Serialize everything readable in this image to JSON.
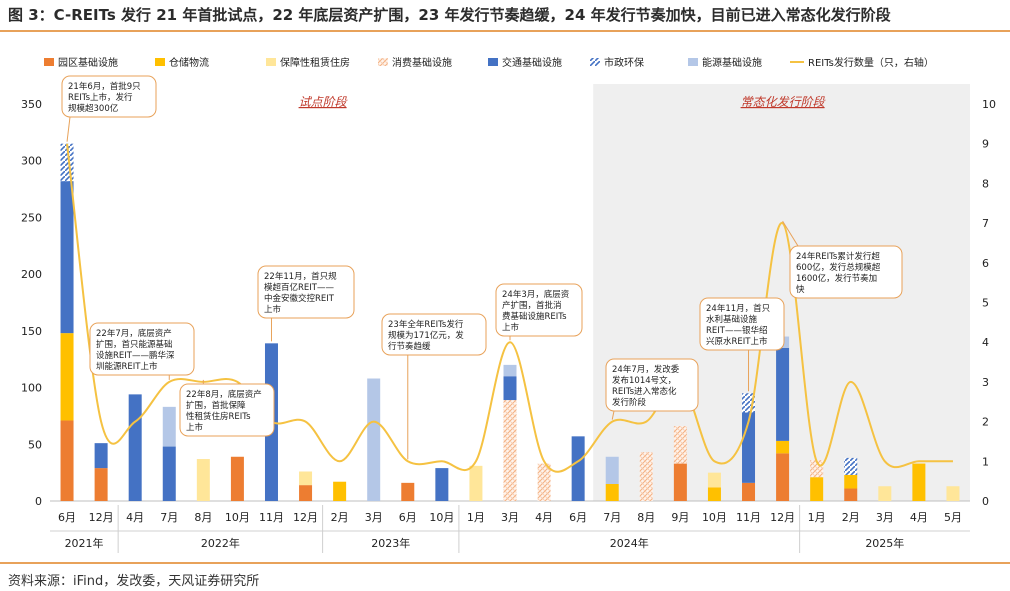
{
  "title": "图 3：C-REITs 发行 21 年首批试点，22 年底层资产扩围，23 年发行节奏趋缓，24 年发行节奏加快，目前已进入常态化发行阶段",
  "source": "资料来源：iFind，发改委，天风证券研究所",
  "chart_data": {
    "type": "bar",
    "stacked": true,
    "categories": [
      "6月",
      "12月",
      "4月",
      "7月",
      "8月",
      "10月",
      "11月",
      "12月",
      "2月",
      "3月",
      "6月",
      "10月",
      "1月",
      "3月",
      "4月",
      "6月",
      "7月",
      "8月",
      "9月",
      "10月",
      "11月",
      "12月",
      "1月",
      "2月",
      "3月",
      "4月",
      "5月"
    ],
    "years": [
      {
        "label": "2021年",
        "start": 0,
        "end": 1
      },
      {
        "label": "2022年",
        "start": 2,
        "end": 7
      },
      {
        "label": "2023年",
        "start": 8,
        "end": 11
      },
      {
        "label": "2024年",
        "start": 12,
        "end": 21
      },
      {
        "label": "2025年",
        "start": 22,
        "end": 26
      }
    ],
    "y_left": {
      "min": 0,
      "max": 350,
      "step": 50,
      "ticks": [
        "0",
        "50",
        "100",
        "150",
        "200",
        "250",
        "300",
        "350"
      ]
    },
    "y_right": {
      "min": 0,
      "max": 10,
      "step": 1,
      "ticks": [
        "0",
        "1",
        "2",
        "3",
        "4",
        "5",
        "6",
        "7",
        "8",
        "9",
        "10"
      ]
    },
    "series": [
      {
        "name": "园区基础设施",
        "color": "#ed7d31",
        "pattern": "solid",
        "values": [
          71,
          29,
          0,
          0,
          0,
          39,
          0,
          14,
          0,
          0,
          16,
          0,
          0,
          0,
          0,
          0,
          0,
          0,
          33,
          0,
          16,
          42,
          0,
          11,
          0,
          0,
          0
        ]
      },
      {
        "name": "仓储物流",
        "color": "#ffc000",
        "pattern": "solid",
        "values": [
          77,
          0,
          0,
          0,
          0,
          0,
          0,
          0,
          17,
          0,
          0,
          0,
          0,
          0,
          0,
          0,
          15,
          0,
          0,
          12,
          0,
          11,
          21,
          12,
          0,
          33,
          0
        ]
      },
      {
        "name": "保障性租赁住房",
        "color": "#ffe699",
        "pattern": "solid",
        "values": [
          0,
          0,
          0,
          0,
          37,
          0,
          0,
          12,
          0,
          0,
          0,
          0,
          31,
          0,
          0,
          0,
          0,
          0,
          0,
          13,
          0,
          0,
          0,
          0,
          13,
          0,
          13
        ]
      },
      {
        "name": "消费基础设施",
        "color": "#f4b183",
        "pattern": "dots",
        "values": [
          0,
          0,
          0,
          0,
          0,
          0,
          0,
          0,
          0,
          0,
          0,
          0,
          0,
          89,
          33,
          0,
          0,
          43,
          33,
          0,
          0,
          0,
          15,
          0,
          0,
          0,
          0
        ]
      },
      {
        "name": "交通基础设施",
        "color": "#4472c4",
        "pattern": "solid",
        "values": [
          134,
          22,
          94,
          48,
          0,
          0,
          139,
          0,
          0,
          0,
          0,
          29,
          0,
          21,
          0,
          57,
          0,
          0,
          0,
          0,
          62,
          82,
          0,
          0,
          0,
          0,
          0
        ]
      },
      {
        "name": "市政环保",
        "color": "#4472c4",
        "pattern": "hatch",
        "values": [
          33,
          0,
          0,
          0,
          0,
          0,
          0,
          0,
          0,
          0,
          0,
          0,
          0,
          0,
          0,
          0,
          0,
          0,
          0,
          0,
          17,
          0,
          0,
          15,
          0,
          0,
          0
        ]
      },
      {
        "name": "能源基础设施",
        "color": "#b4c7e7",
        "pattern": "solid",
        "values": [
          0,
          0,
          0,
          35,
          0,
          0,
          0,
          0,
          0,
          108,
          0,
          0,
          0,
          10,
          0,
          0,
          24,
          0,
          0,
          0,
          0,
          10,
          0,
          0,
          0,
          0,
          0
        ]
      }
    ],
    "line": {
      "name": "REITs发行数量（只，右轴）",
      "color": "#f5c242",
      "values": [
        9,
        2,
        2,
        3,
        3,
        3,
        2,
        2,
        1,
        2,
        1,
        1,
        1,
        4,
        1,
        1,
        2,
        2,
        3,
        1,
        2,
        7,
        1,
        3,
        1,
        1,
        1
      ]
    },
    "phases": [
      {
        "label": "试点阶段",
        "start": 0,
        "end": 15,
        "shaded": false
      },
      {
        "label": "常态化发行阶段",
        "start": 16,
        "end": 26,
        "shaded": true
      }
    ],
    "annotations": [
      {
        "lines": [
          "21年6月，首批9只",
          "REITs上市，发行",
          "规模超300亿"
        ],
        "target": 0
      },
      {
        "lines": [
          "22年7月，底层资产",
          "扩围，首只能源基础",
          "设施REIT——鹏华深",
          "圳能源REIT上市"
        ],
        "target": 3
      },
      {
        "lines": [
          "22年8月，底层资产",
          "扩围，首批保障",
          "性租赁住房REITs",
          "上市"
        ],
        "target": 4
      },
      {
        "lines": [
          "22年11月，首只规",
          "模超百亿REIT——",
          "中金安徽交控REIT",
          "上市"
        ],
        "target": 6
      },
      {
        "lines": [
          "23年全年REITs发行",
          "规模为171亿元，发",
          "行节奏趋缓"
        ],
        "target": 10
      },
      {
        "lines": [
          "24年3月，底层资",
          "产扩围，首批消",
          "费基础设施REITs",
          "上市"
        ],
        "target": 13
      },
      {
        "lines": [
          "24年7月，发改委",
          "发布1014号文，",
          "REITs进入常态化",
          "发行阶段"
        ],
        "target": 16
      },
      {
        "lines": [
          "24年11月，首只",
          "水利基础设施",
          "REIT——银华绍",
          "兴原水REIT上市"
        ],
        "target": 20
      },
      {
        "lines": [
          "24年REITs累计发行超",
          "600亿，发行总规模超",
          "1600亿，发行节奏加",
          "快"
        ],
        "target": 21
      }
    ]
  }
}
